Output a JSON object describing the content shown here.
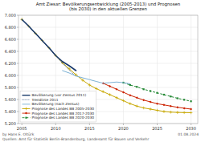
{
  "chart_data": {
    "type": "line",
    "title": "Amt Ziesar: Bevölkerungsentwicklung (2005-2013) und Prognosen\n(bis 2030) in den aktuellen Grenzen",
    "xlim": [
      2004.5,
      2031
    ],
    "ylim": [
      5200,
      7000
    ],
    "xticks": [
      2005,
      2010,
      2015,
      2020,
      2025,
      2030
    ],
    "yticks": [
      {
        "value": 5200,
        "label": "5.200"
      },
      {
        "value": 5400,
        "label": "5.400"
      },
      {
        "value": 5600,
        "label": "5.600"
      },
      {
        "value": 5800,
        "label": "5.800"
      },
      {
        "value": 6000,
        "label": "6.000"
      },
      {
        "value": 6200,
        "label": "6.200"
      },
      {
        "value": 6400,
        "label": "6.400"
      },
      {
        "value": 6600,
        "label": "6.600"
      },
      {
        "value": 6800,
        "label": "6.800"
      },
      {
        "value": 7000,
        "label": "7.000"
      }
    ],
    "grid": true,
    "legend": "lower left",
    "series": [
      {
        "name": "Bevölkerung (vor Zensus 2011)",
        "color": "#1a3a6b",
        "line_style": "solid",
        "x": [
          2005,
          2006,
          2007,
          2008,
          2009,
          2010,
          2011,
          2012,
          2013
        ],
        "values": [
          6930,
          6820,
          6700,
          6580,
          6460,
          6330,
          6230,
          6160,
          6080
        ]
      },
      {
        "name": "Trendlinie 2011",
        "color": "#1a3a6b",
        "line_style": "dotted",
        "x": [
          2005,
          2006,
          2007,
          2008,
          2009,
          2010,
          2011,
          2012,
          2013
        ],
        "values": [
          6930,
          6820,
          6700,
          6580,
          6460,
          6330,
          6200,
          6090,
          5980
        ]
      },
      {
        "name": "Bevölkerung (nach Zensus)",
        "color": "#7ab0d4",
        "line_style": "solid",
        "x": [
          2011,
          2012,
          2013,
          2014,
          2015,
          2016,
          2017,
          2018,
          2019,
          2020,
          2021
        ],
        "values": [
          6080,
          6040,
          5990,
          5960,
          5930,
          5900,
          5870,
          5880,
          5890,
          5880,
          5860
        ]
      },
      {
        "name": "Prognose des Landes BB 2005-2030",
        "color": "#c8a800",
        "line_style": "solid",
        "marker": "plus",
        "x": [
          2005,
          2006,
          2007,
          2008,
          2009,
          2010,
          2011,
          2012,
          2013,
          2014,
          2015,
          2016,
          2017,
          2018,
          2019,
          2020,
          2021,
          2022,
          2023,
          2024,
          2025,
          2026,
          2027,
          2028,
          2029,
          2030
        ],
        "values": [
          6930,
          6820,
          6700,
          6580,
          6460,
          6330,
          6210,
          6110,
          6010,
          5920,
          5840,
          5780,
          5730,
          5680,
          5630,
          5580,
          5530,
          5490,
          5460,
          5440,
          5420,
          5400,
          5390,
          5385,
          5382,
          5380
        ]
      },
      {
        "name": "Prognose des Landes BB 2017-2030",
        "color": "#cc2200",
        "line_style": "solid",
        "marker": "diamond",
        "x": [
          2017,
          2018,
          2019,
          2020,
          2021,
          2022,
          2023,
          2024,
          2025,
          2026,
          2027,
          2028,
          2029,
          2030
        ],
        "values": [
          5870,
          5820,
          5770,
          5720,
          5670,
          5630,
          5590,
          5560,
          5530,
          5510,
          5490,
          5470,
          5455,
          5440
        ]
      },
      {
        "name": "Prognose des Landes BB 2020-2030",
        "color": "#228833",
        "line_style": "dashed",
        "marker": "square",
        "x": [
          2020,
          2021,
          2022,
          2023,
          2024,
          2025,
          2026,
          2027,
          2028,
          2029,
          2030
        ],
        "values": [
          5880,
          5840,
          5810,
          5770,
          5740,
          5710,
          5680,
          5650,
          5620,
          5595,
          5570
        ]
      }
    ],
    "annotations": [
      "by Hans E. Oltürk",
      "Quellen: Amt für Statistik Berlin-Brandenburg, Landesamt für Bauen und Verkehr",
      "01.08.2024"
    ]
  }
}
